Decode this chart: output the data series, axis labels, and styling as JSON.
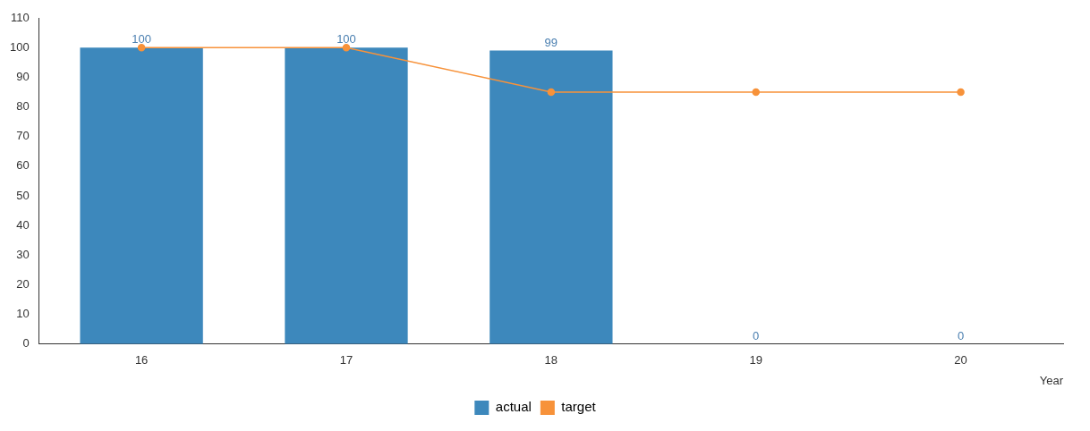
{
  "chart_data": {
    "type": "bar",
    "xlabel": "Year",
    "categories": [
      "16",
      "17",
      "18",
      "19",
      "20"
    ],
    "series": [
      {
        "name": "actual",
        "color": "#3d88bc",
        "values": [
          100,
          100,
          99,
          0,
          0
        ],
        "value_labels": [
          "100",
          "100",
          "99",
          "0",
          "0"
        ]
      },
      {
        "name": "target",
        "type": "line",
        "color": "#f7923a",
        "values": [
          100,
          100,
          85,
          85,
          85
        ],
        "marker": "circle"
      }
    ],
    "ylim": [
      0,
      110
    ],
    "yticks": [
      0,
      10,
      20,
      30,
      40,
      50,
      60,
      70,
      80,
      90,
      100,
      110
    ],
    "grid": false,
    "legend": "bottom"
  }
}
